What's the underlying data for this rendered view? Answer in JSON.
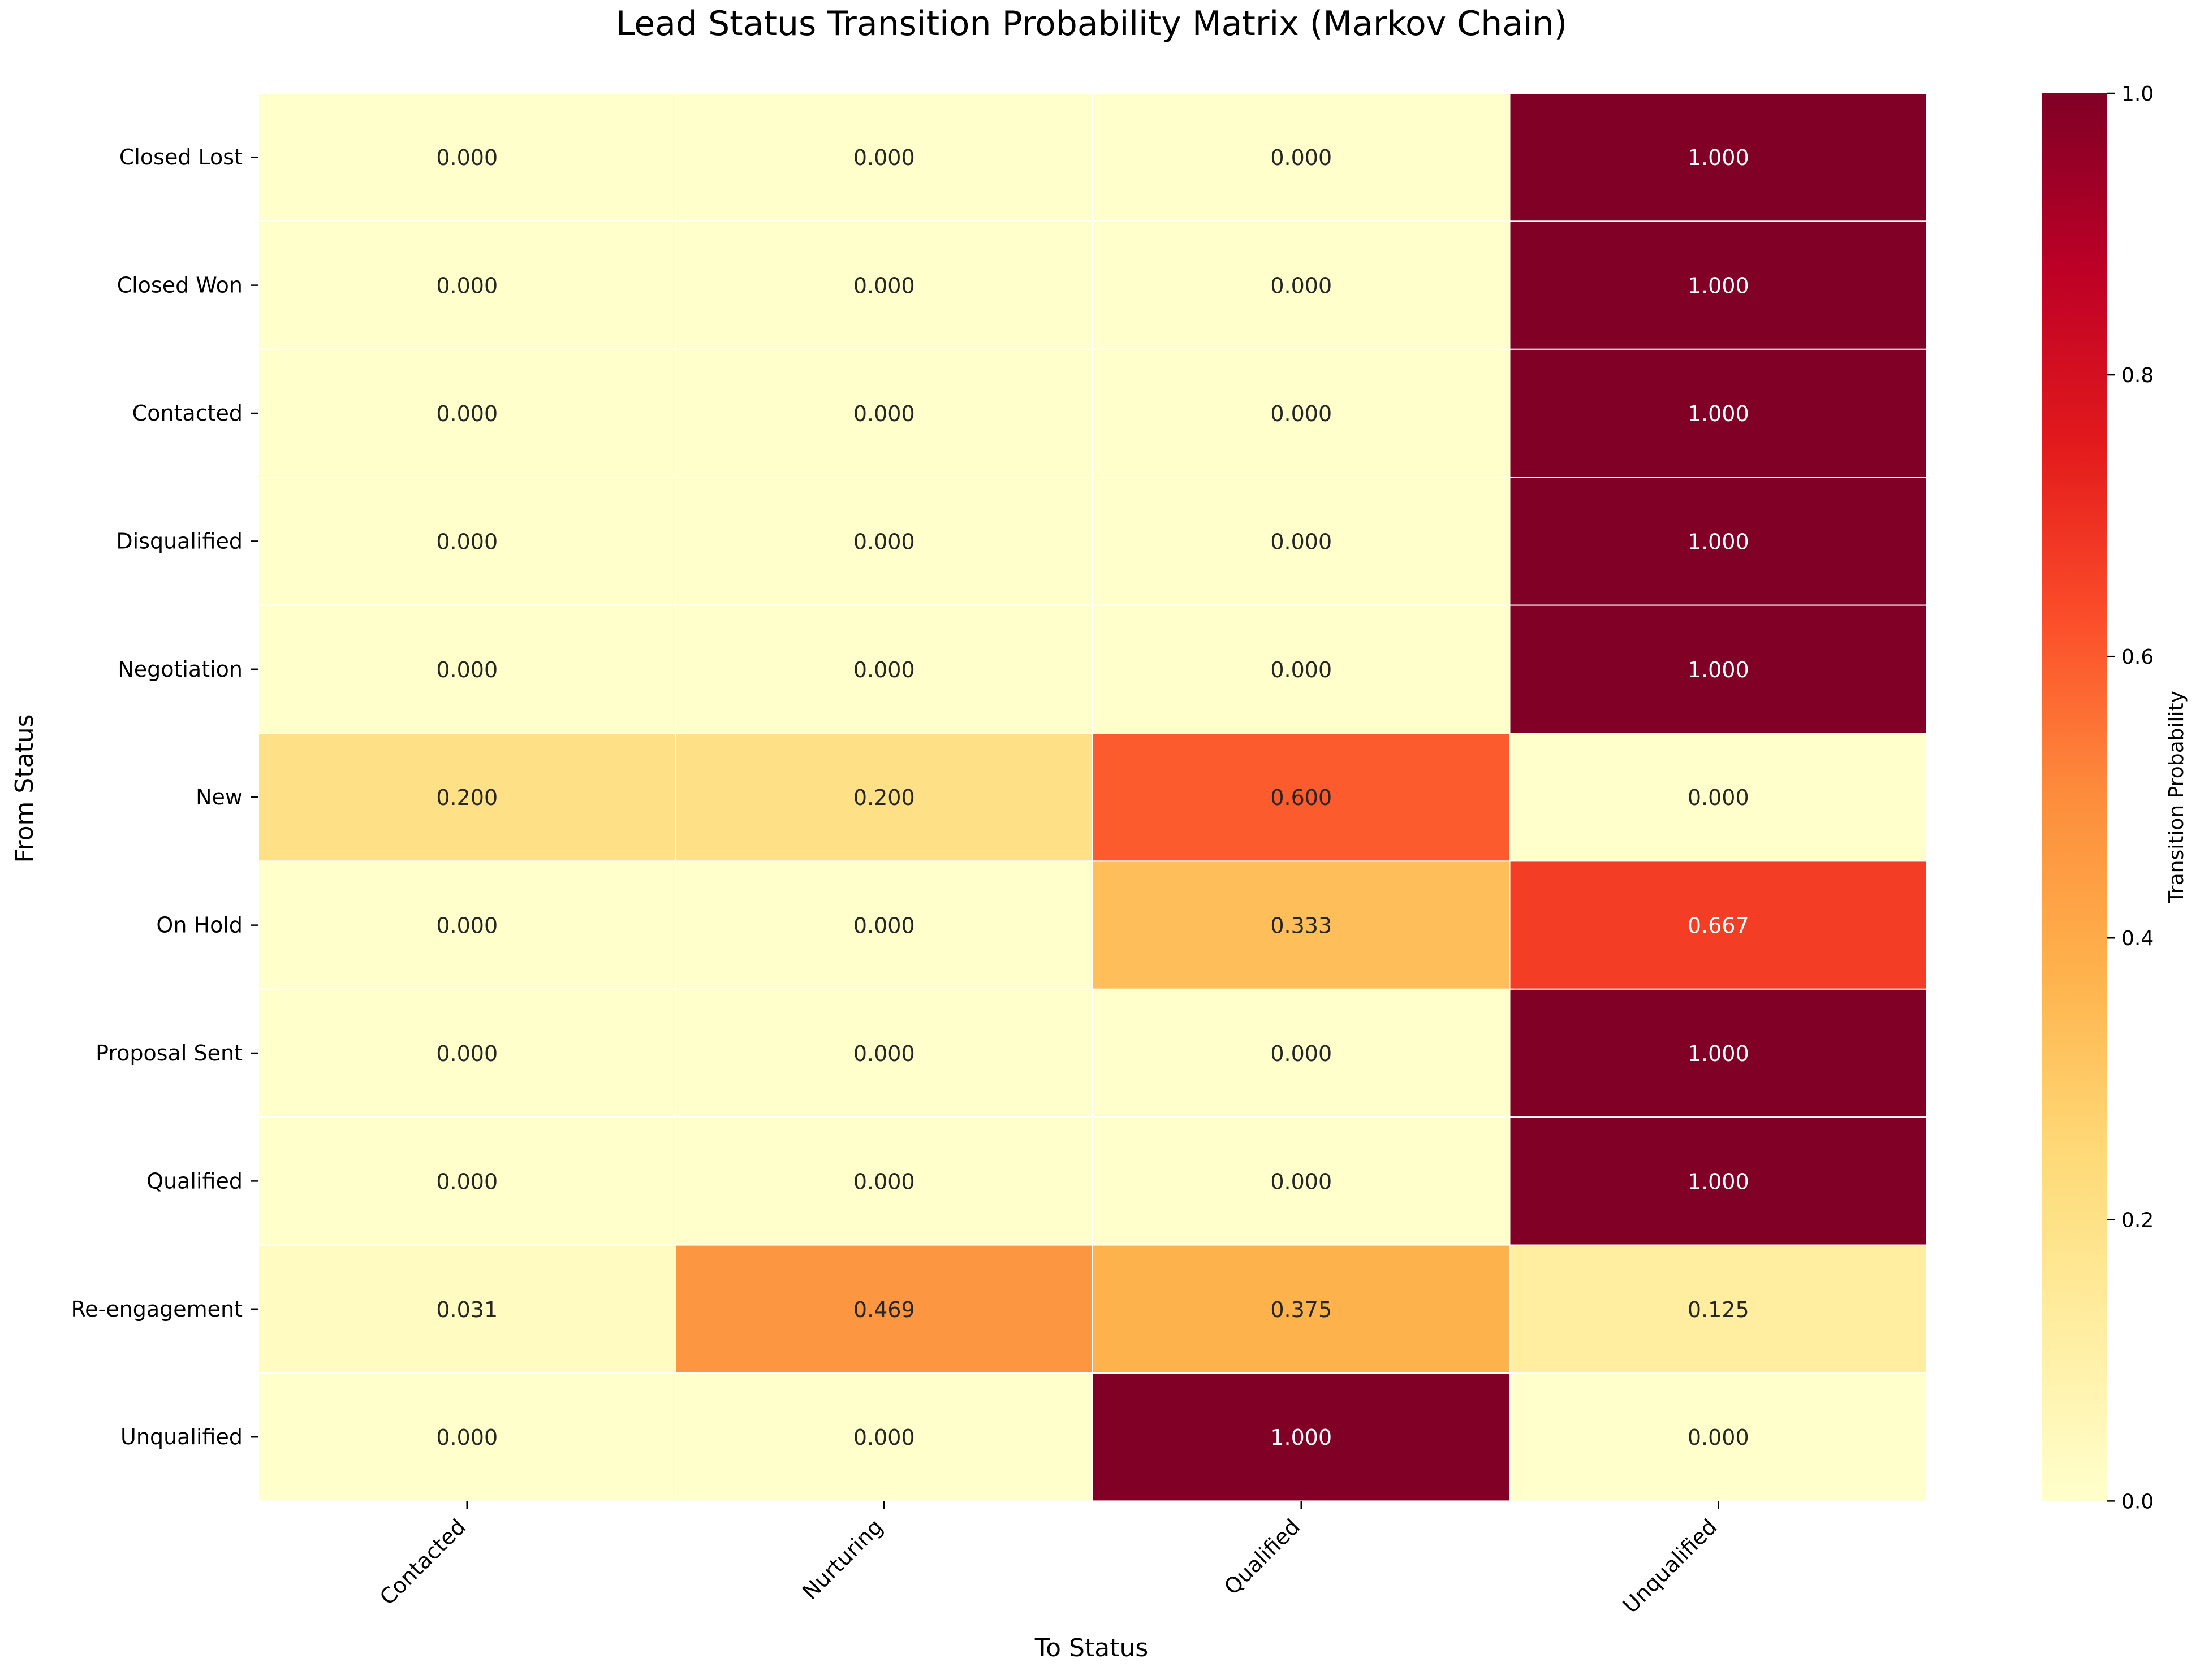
{
  "chart_data": {
    "type": "heatmap",
    "title": "Lead Status Transition Probability Matrix (Markov Chain)",
    "xlabel": "To Status",
    "ylabel": "From Status",
    "x_categories": [
      "Contacted",
      "Nurturing",
      "Qualified",
      "Unqualified"
    ],
    "y_categories": [
      "Closed Lost",
      "Closed Won",
      "Contacted",
      "Disqualified",
      "Negotiation",
      "New",
      "On Hold",
      "Proposal Sent",
      "Qualified",
      "Re-engagement",
      "Unqualified"
    ],
    "values": [
      [
        0.0,
        0.0,
        0.0,
        1.0
      ],
      [
        0.0,
        0.0,
        0.0,
        1.0
      ],
      [
        0.0,
        0.0,
        0.0,
        1.0
      ],
      [
        0.0,
        0.0,
        0.0,
        1.0
      ],
      [
        0.0,
        0.0,
        0.0,
        1.0
      ],
      [
        0.2,
        0.2,
        0.6,
        0.0
      ],
      [
        0.0,
        0.0,
        0.333,
        0.667
      ],
      [
        0.0,
        0.0,
        0.0,
        1.0
      ],
      [
        0.0,
        0.0,
        0.0,
        1.0
      ],
      [
        0.031,
        0.469,
        0.375,
        0.125
      ],
      [
        0.0,
        0.0,
        1.0,
        0.0
      ]
    ],
    "value_format_decimals": 3,
    "colormap": "YlOrRd",
    "colormap_stops": [
      "#ffffcc",
      "#ffeda0",
      "#fed976",
      "#feb24c",
      "#fd8d3c",
      "#fc4e2a",
      "#e31a1c",
      "#bd0026",
      "#800026"
    ],
    "cell_border_color": "#ffffff",
    "colorbar": {
      "label": "Transition Probability",
      "range": [
        0.0,
        1.0
      ],
      "ticks": [
        "0.0",
        "0.2",
        "0.4",
        "0.6",
        "0.8",
        "1.0"
      ]
    },
    "grid": false
  }
}
